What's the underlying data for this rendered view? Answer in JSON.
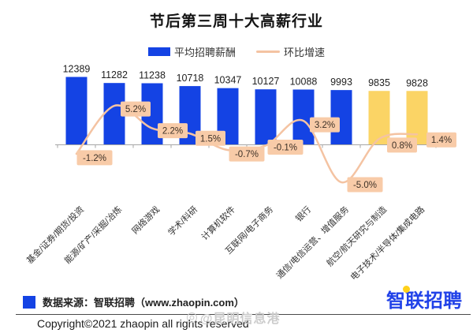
{
  "title": "节后第三周十大高薪行业",
  "legend": {
    "bar_label": "平均招聘薪酬",
    "line_label": "环比增速"
  },
  "colors": {
    "bar_blue": "#1443e4",
    "bar_yellow": "#fbd465",
    "line": "#f4c3a2",
    "label_bg": "#f8cba8",
    "label_text": "#3d3127",
    "axis": "#a6a6a6",
    "logo_blue": "#2142e8",
    "logo_yellow": "#ffd11a"
  },
  "chart_data": {
    "type": "bar+line",
    "title": "节后第三周十大高薪行业",
    "legend_position": "top",
    "y_axis": "hidden",
    "categories": [
      "基金/证券/期货/投资",
      "能源/矿产/采掘/冶炼",
      "网络游戏",
      "学术/科研",
      "计算机软件",
      "互联网/电子商务",
      "银行",
      "通信/电信运营、增值服务",
      "航空/航天研究与制造",
      "电子技术/半导体/集成电路"
    ],
    "series": [
      {
        "name": "平均招聘薪酬",
        "type": "bar",
        "values": [
          12389,
          11282,
          11238,
          10718,
          10347,
          10127,
          10088,
          9993,
          9835,
          9828
        ]
      },
      {
        "name": "环比增速",
        "type": "line",
        "values": [
          -1.2,
          5.2,
          2.2,
          1.5,
          -0.7,
          -0.1,
          3.2,
          -5.0,
          0.8,
          1.4
        ],
        "labels": [
          "-1.2%",
          "5.2%",
          "2.2%",
          "1.5%",
          "-0.7%",
          "-0.1%",
          "3.2%",
          "-5.0%",
          "0.8%",
          "1.4%"
        ]
      }
    ],
    "bar_highlight_indexes": [
      8,
      9
    ]
  },
  "footer": {
    "source_text": "数据来源：智联招聘（www.zhaopin.com）",
    "logo_text": "智联招聘"
  },
  "copyright": {
    "text": "Copyright©2021 zhaopin all rights reserved",
    "watermark_icon": "◎",
    "watermark": "@昆明信息港"
  }
}
